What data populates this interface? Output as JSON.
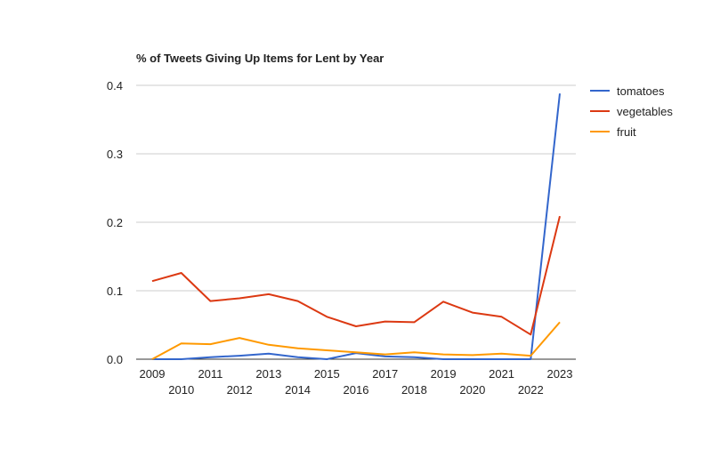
{
  "chart_data": {
    "type": "line",
    "title": "% of Tweets Giving Up Items for Lent by Year",
    "xlabel": "",
    "ylabel": "",
    "x": [
      "2009",
      "2010",
      "2011",
      "2012",
      "2013",
      "2014",
      "2015",
      "2016",
      "2017",
      "2018",
      "2019",
      "2020",
      "2021",
      "2022",
      "2023"
    ],
    "ylim": [
      0,
      0.4
    ],
    "yticks": [
      "0.0",
      "0.1",
      "0.2",
      "0.3",
      "0.4"
    ],
    "grid": true,
    "legend_position": "right",
    "series": [
      {
        "name": "tomatoes",
        "color": "#3366cc",
        "values": [
          0,
          0,
          0.003,
          0.005,
          0.008,
          0.003,
          0,
          0.009,
          0.004,
          0.003,
          0,
          0,
          0,
          0,
          0.388
        ]
      },
      {
        "name": "vegetables",
        "color": "#dc3912",
        "values": [
          0.114,
          0.126,
          0.085,
          0.089,
          0.095,
          0.085,
          0.062,
          0.048,
          0.055,
          0.054,
          0.084,
          0.068,
          0.062,
          0.036,
          0.209
        ]
      },
      {
        "name": "fruit",
        "color": "#ff9900",
        "values": [
          0,
          0.023,
          0.022,
          0.031,
          0.021,
          0.016,
          0.013,
          0.01,
          0.007,
          0.01,
          0.007,
          0.006,
          0.008,
          0.005,
          0.054
        ]
      }
    ]
  }
}
